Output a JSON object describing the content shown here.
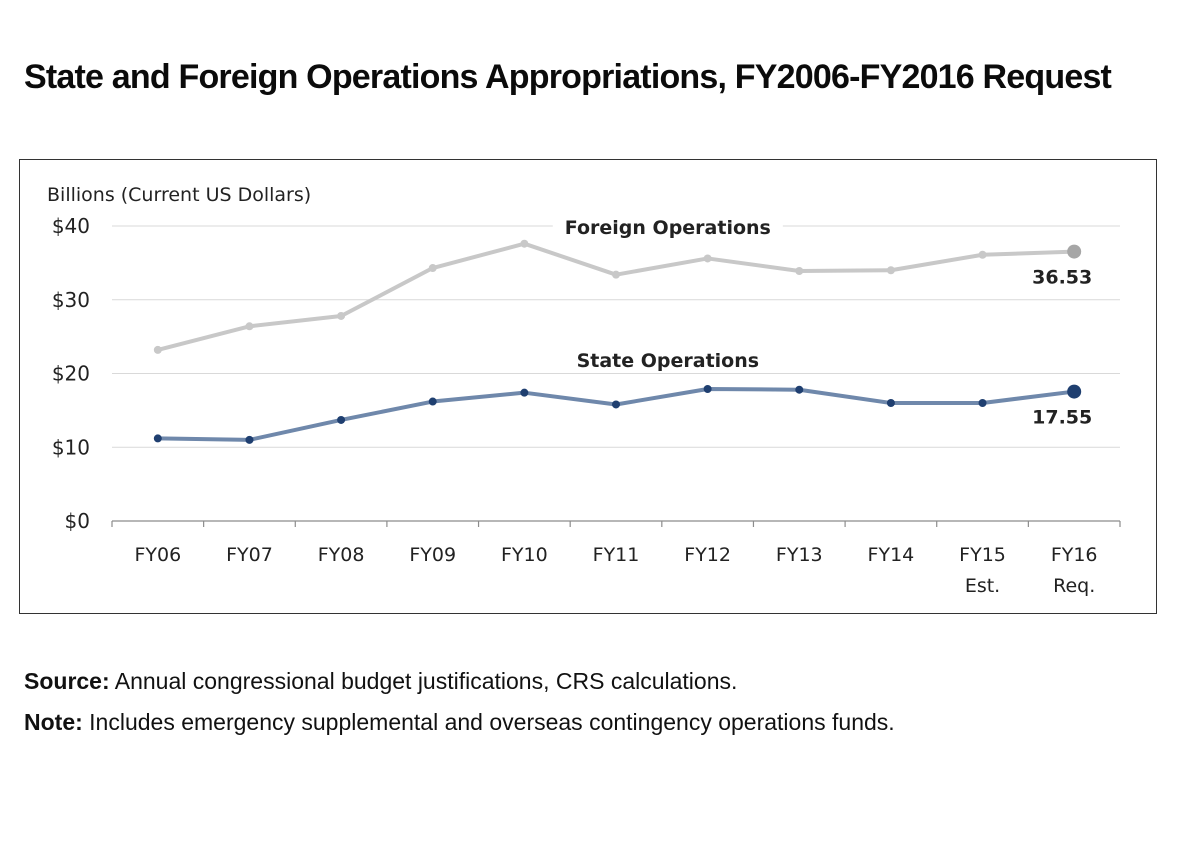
{
  "title": "State and Foreign Operations Appropriations, FY2006-FY2016 Request",
  "notes": {
    "source_label": "Source:",
    "source_text": " Annual congressional budget justifications, CRS calculations.",
    "note_label": "Note:",
    "note_text": " Includes emergency supplemental and overseas contingency operations funds."
  },
  "colors": {
    "foreign_line": "#c8c8c8",
    "foreign_end_point": "#a6a6a6",
    "state_line": "#6f88ab",
    "state_point": "#1f3f70",
    "grid": "#d9d9d9"
  },
  "chart_data": {
    "type": "line",
    "ylabel": "Billions (Current US Dollars)",
    "ylim": [
      0,
      40
    ],
    "yticks": [
      0,
      10,
      20,
      30,
      40
    ],
    "ytick_labels": [
      "$0",
      "$10",
      "$20",
      "$30",
      "$40"
    ],
    "grid": true,
    "categories": [
      [
        "FY06"
      ],
      [
        "FY07"
      ],
      [
        "FY08"
      ],
      [
        "FY09"
      ],
      [
        "FY10"
      ],
      [
        "FY11"
      ],
      [
        "FY12"
      ],
      [
        "FY13"
      ],
      [
        "FY14"
      ],
      [
        "FY15",
        "Est."
      ],
      [
        "FY16",
        "Req."
      ]
    ],
    "series": [
      {
        "name": "Foreign Operations",
        "values": [
          23.2,
          26.4,
          27.8,
          34.3,
          37.6,
          33.4,
          35.6,
          33.9,
          34.0,
          36.1,
          36.53
        ],
        "end_label": "36.53"
      },
      {
        "name": "State Operations",
        "values": [
          11.2,
          11.0,
          13.7,
          16.2,
          17.4,
          15.8,
          17.9,
          17.8,
          16.0,
          16.0,
          17.55
        ],
        "end_label": "17.55"
      }
    ]
  }
}
